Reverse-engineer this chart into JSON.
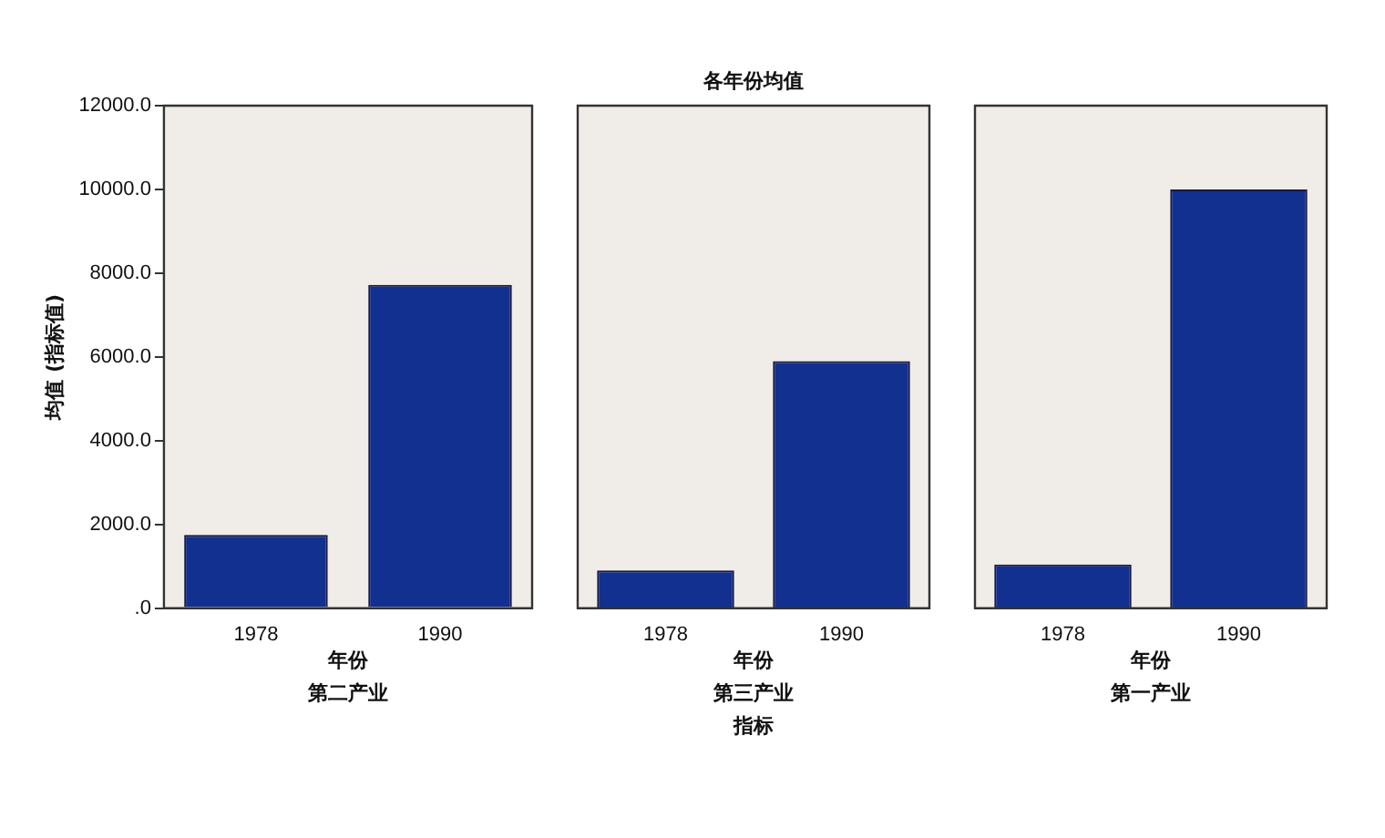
{
  "chart_data": [
    {
      "type": "bar",
      "ylabel": "均值 (指标值)",
      "xlabel": "年份",
      "categories": [
        "1978",
        "1990"
      ],
      "values": [
        1750,
        7720
      ],
      "color": "#12308f",
      "ylim": [
        0,
        12000
      ],
      "yticks": [
        {
          "value": 0,
          "label": ".0"
        },
        {
          "value": 2000,
          "label": "2000.0"
        },
        {
          "value": 4000,
          "label": "4000.0"
        },
        {
          "value": 6000,
          "label": "6000.0"
        },
        {
          "value": 8000,
          "label": "8000.0"
        },
        {
          "value": 10000,
          "label": "10000.0"
        },
        {
          "value": 12000,
          "label": "12000.0"
        }
      ],
      "annotations": [
        "第二产业"
      ]
    },
    {
      "type": "bar",
      "title": "各年份均值",
      "xlabel": "年份",
      "categories": [
        "1978",
        "1990"
      ],
      "values": [
        900,
        5900
      ],
      "color": "#12308f",
      "ylim": [
        0,
        12000
      ],
      "tick_labels": "x",
      "annotations": [
        "第三产业",
        "指标"
      ]
    },
    {
      "type": "bar",
      "xlabel": "年份",
      "categories": [
        "1978",
        "1990"
      ],
      "values": [
        1040,
        10000
      ],
      "color": "#12308f",
      "ylim": [
        0,
        12000
      ],
      "tick_labels": "x",
      "annotations": [
        "第一产业"
      ]
    }
  ]
}
